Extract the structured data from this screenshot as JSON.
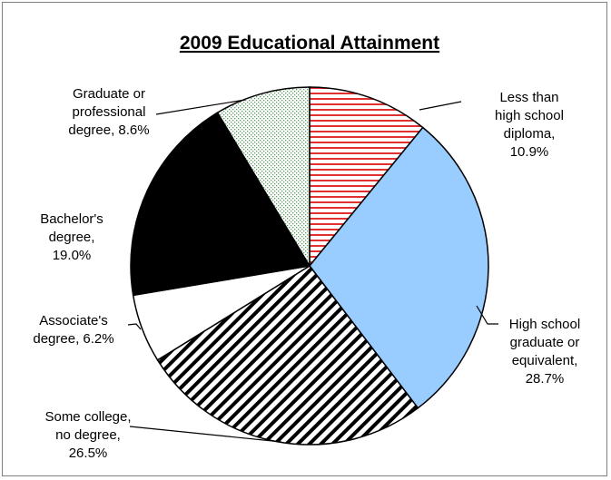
{
  "chart_data": {
    "type": "pie",
    "title": "2009 Educational Attainment",
    "slices": [
      {
        "label_lines": [
          "Less than",
          "high school",
          "diploma,",
          "10.9%"
        ],
        "value": 10.9,
        "fill": "#ffffff",
        "pattern": "red-horizontal-stripes",
        "pattern_color": "#e03030"
      },
      {
        "label_lines": [
          "High school",
          "graduate or",
          "equivalent,",
          "28.7%"
        ],
        "value": 28.7,
        "fill": "#99ccff",
        "pattern": "solid"
      },
      {
        "label_lines": [
          "Some college,",
          "no degree,",
          "26.5%"
        ],
        "value": 26.5,
        "fill": "#ffffff",
        "pattern": "black-diagonal-stripes",
        "pattern_color": "#000000"
      },
      {
        "label_lines": [
          "Associate's",
          "degree, 6.2%"
        ],
        "value": 6.2,
        "fill": "#ffffff",
        "pattern": "solid"
      },
      {
        "label_lines": [
          "Bachelor's",
          "degree,",
          "19.0%"
        ],
        "value": 19.0,
        "fill": "#000000",
        "pattern": "solid"
      },
      {
        "label_lines": [
          "Graduate or",
          "professional",
          "degree, 8.6%"
        ],
        "value": 8.6,
        "fill": "#ffffff",
        "pattern": "green-dots",
        "pattern_color": "#5a9a5a"
      }
    ],
    "start_angle_deg": 0,
    "direction": "clockwise",
    "legend": "none"
  }
}
